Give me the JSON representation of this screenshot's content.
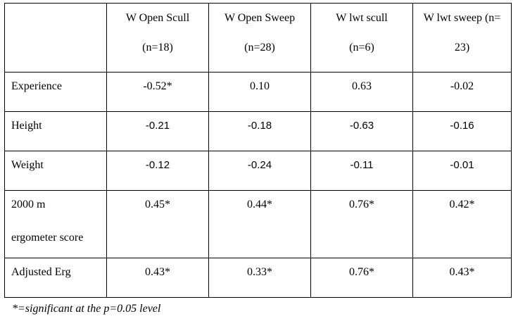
{
  "table": {
    "headers": [
      {
        "line1": "W Open Scull",
        "line2": "(n=18)"
      },
      {
        "line1": "W Open Sweep",
        "line2": "(n=28)"
      },
      {
        "line1": "W lwt scull",
        "line2": "(n=6)"
      },
      {
        "line1": "W lwt sweep (n=",
        "line2": "23)"
      }
    ],
    "rows": [
      {
        "label": [
          "Experience"
        ],
        "values": [
          "-0.52*",
          "0.10",
          "0.63",
          "-0.02"
        ]
      },
      {
        "label": [
          "Height"
        ],
        "values": [
          "-0.21",
          "-0.18",
          "-0.63",
          "-0.16"
        ]
      },
      {
        "label": [
          "Weight"
        ],
        "values": [
          "-0.12",
          "-0.24",
          "-0.11",
          "-0.01"
        ]
      },
      {
        "label": [
          "2000 m",
          "ergometer score"
        ],
        "values": [
          "0.45*",
          "0.44*",
          "0.76*",
          "0.42*"
        ]
      },
      {
        "label": [
          "Adjusted Erg"
        ],
        "values": [
          "0.43*",
          "0.33*",
          "0.76*",
          "0.43*"
        ]
      }
    ]
  },
  "footnote": "*=significant at the p=0.05 level"
}
